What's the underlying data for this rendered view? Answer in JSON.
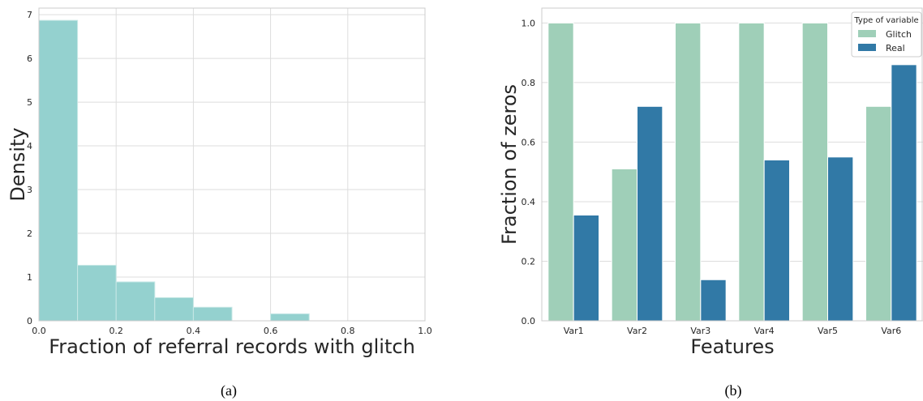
{
  "chart_data": [
    {
      "type": "bar",
      "subtype": "histogram",
      "caption": "(a)",
      "xlabel": "Fraction of referral records with glitch",
      "ylabel": "Density",
      "xlim": [
        0,
        1.0
      ],
      "ylim": [
        0,
        7.15
      ],
      "xticks": [
        "0.0",
        "0.2",
        "0.4",
        "0.6",
        "0.8",
        "1.0"
      ],
      "yticks": [
        "0",
        "1",
        "2",
        "3",
        "4",
        "5",
        "6",
        "7"
      ],
      "grid": true,
      "color": "#94d1cf",
      "bins": [
        {
          "x0": 0.0,
          "x1": 0.1,
          "value": 6.87
        },
        {
          "x0": 0.1,
          "x1": 0.2,
          "value": 1.27
        },
        {
          "x0": 0.2,
          "x1": 0.3,
          "value": 0.89
        },
        {
          "x0": 0.3,
          "x1": 0.4,
          "value": 0.53
        },
        {
          "x0": 0.4,
          "x1": 0.5,
          "value": 0.31
        },
        {
          "x0": 0.5,
          "x1": 0.6,
          "value": 0.0
        },
        {
          "x0": 0.6,
          "x1": 0.7,
          "value": 0.16
        }
      ]
    },
    {
      "type": "bar",
      "caption": "(b)",
      "xlabel": "Features",
      "ylabel": "Fraction of zeros",
      "ylim": [
        0,
        1.05
      ],
      "yticks": [
        "0.0",
        "0.2",
        "0.4",
        "0.6",
        "0.8",
        "1.0"
      ],
      "grid": true,
      "categories": [
        "Var1",
        "Var2",
        "Var3",
        "Var4",
        "Var5",
        "Var6"
      ],
      "legend": {
        "title": "Type of variable",
        "placement": "top-right"
      },
      "series": [
        {
          "name": "Glitch",
          "color": "#9fcfb8",
          "values": [
            1.0,
            0.51,
            1.0,
            1.0,
            1.0,
            0.72
          ]
        },
        {
          "name": "Real",
          "color": "#3179a6",
          "values": [
            0.355,
            0.72,
            0.138,
            0.54,
            0.55,
            0.86
          ]
        }
      ]
    }
  ]
}
